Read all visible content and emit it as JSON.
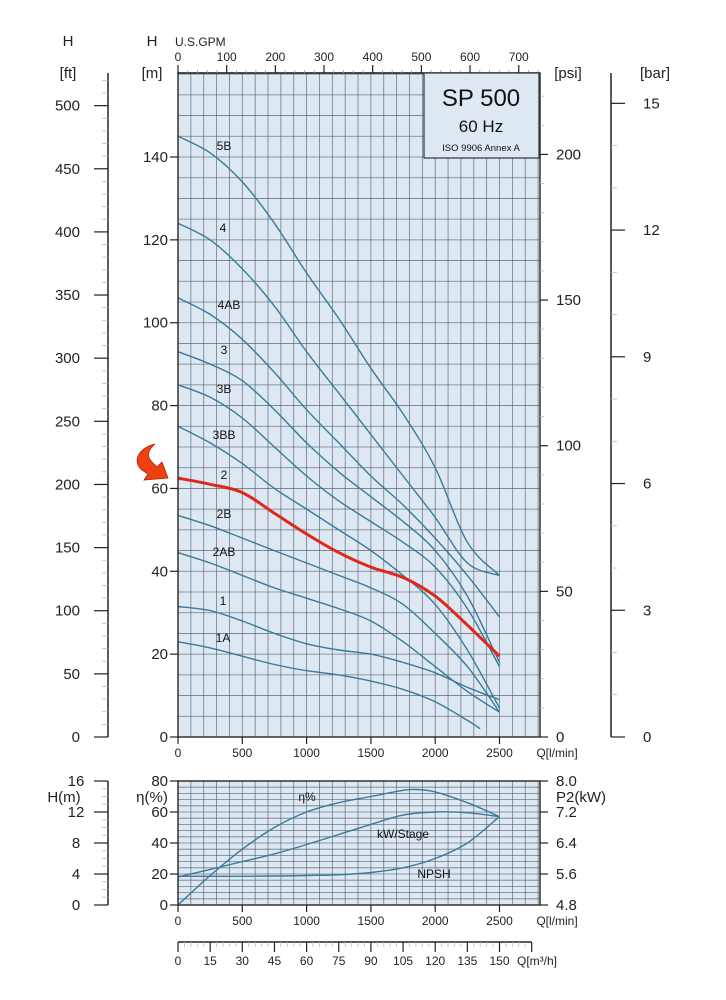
{
  "colors": {
    "plot_bg": "#dde8f3",
    "grid": "#4a5866",
    "curve": "#3a7a9a",
    "highlight": "#e02818",
    "arrow": "#f04010",
    "axis": "#222222"
  },
  "title_box": {
    "model": "SP 500",
    "frequency": "60 Hz",
    "standard": "ISO 9906 Annex A"
  },
  "arrow_marker": {
    "icon": "curved-arrow-icon",
    "points_to_curve": "2"
  },
  "chart_data": [
    {
      "type": "line",
      "title": "SP 500 60 Hz head curves",
      "xlabel": "Q[l/min]",
      "ylabel": "H [m]",
      "xlim": [
        0,
        2800
      ],
      "ylim": [
        0,
        160
      ],
      "grid": true,
      "x_ticks": [
        0,
        500,
        1000,
        1500,
        2000,
        2500
      ],
      "x_tick_labels": [
        "0",
        "500",
        "1000",
        "1500",
        "2000",
        "2500"
      ],
      "y_ticks": [
        0,
        20,
        40,
        60,
        80,
        100,
        120,
        140
      ],
      "y_tick_labels": [
        "0",
        "20",
        "40",
        "60",
        "80",
        "100",
        "120",
        "140"
      ],
      "top_axis": {
        "label": "U.S.GPM",
        "ticks": [
          "0",
          "100",
          "200",
          "300",
          "400",
          "500",
          "600",
          "700"
        ]
      },
      "left_axis_ft": {
        "label": "H",
        "unit": "[ft]",
        "ticks": [
          "0",
          "50",
          "100",
          "150",
          "200",
          "250",
          "300",
          "350",
          "400",
          "450",
          "500"
        ]
      },
      "left_axis_m": {
        "label": "H",
        "unit": "[m]"
      },
      "right_axis_psi": {
        "unit": "[psi]",
        "ticks": [
          "0",
          "50",
          "100",
          "150",
          "200"
        ]
      },
      "right_axis_bar": {
        "unit": "[bar]",
        "ticks": [
          "0",
          "3",
          "6",
          "9",
          "12",
          "15"
        ]
      },
      "series": [
        {
          "name": "5B",
          "highlight": false,
          "x": [
            0,
            250,
            500,
            750,
            1000,
            1250,
            1500,
            1750,
            2000,
            2250,
            2500
          ],
          "y": [
            145,
            141,
            134,
            124,
            112,
            101,
            89,
            78,
            65,
            47,
            39
          ]
        },
        {
          "name": "4",
          "highlight": false,
          "x": [
            0,
            250,
            500,
            750,
            1000,
            1250,
            1500,
            1750,
            2000,
            2250,
            2500
          ],
          "y": [
            124,
            120,
            113,
            104,
            93,
            83,
            73,
            63,
            53,
            42,
            39
          ]
        },
        {
          "name": "4AB",
          "highlight": false,
          "x": [
            0,
            250,
            500,
            750,
            1000,
            1250,
            1500,
            1750,
            2000,
            2250,
            2500
          ],
          "y": [
            106,
            102,
            96,
            88,
            79,
            71,
            63,
            56,
            48,
            39,
            29
          ]
        },
        {
          "name": "3",
          "highlight": false,
          "x": [
            0,
            250,
            500,
            750,
            1000,
            1250,
            1500,
            1750,
            2000,
            2250,
            2500
          ],
          "y": [
            93,
            90,
            86,
            79,
            71,
            64,
            58,
            52,
            45,
            34,
            18
          ]
        },
        {
          "name": "3B",
          "highlight": false,
          "x": [
            0,
            250,
            500,
            750,
            1000,
            1250,
            1500,
            1750,
            2000,
            2250,
            2500
          ],
          "y": [
            85,
            82,
            77,
            70,
            63,
            57,
            52,
            47,
            41,
            31,
            17
          ]
        },
        {
          "name": "3BB",
          "highlight": false,
          "x": [
            0,
            250,
            500,
            750,
            1000,
            1250,
            1500,
            1750,
            2000,
            2250,
            2500
          ],
          "y": [
            75,
            71,
            66,
            60,
            55,
            50,
            45,
            39,
            32,
            21,
            7
          ]
        },
        {
          "name": "2",
          "highlight": true,
          "x": [
            0,
            250,
            500,
            750,
            1000,
            1250,
            1500,
            1750,
            2000,
            2250,
            2500
          ],
          "y": [
            62.5,
            61,
            59,
            54,
            49,
            44.5,
            41,
            38.5,
            34,
            27,
            19.5
          ]
        },
        {
          "name": "2B",
          "highlight": false,
          "x": [
            0,
            250,
            500,
            750,
            1000,
            1250,
            1500,
            1750,
            2000,
            2250,
            2500
          ],
          "y": [
            53.5,
            51,
            48,
            45,
            42,
            39,
            36,
            32,
            25,
            17,
            6
          ]
        },
        {
          "name": "2AB",
          "highlight": false,
          "x": [
            0,
            250,
            500,
            750,
            1000,
            1250,
            1500,
            1750,
            2000,
            2250,
            2500
          ],
          "y": [
            44.5,
            42,
            39,
            36,
            33.5,
            31,
            28,
            23,
            17,
            11,
            6
          ]
        },
        {
          "name": "1",
          "highlight": false,
          "x": [
            0,
            250,
            500,
            750,
            1000,
            1250,
            1500,
            1750,
            2000,
            2250,
            2500
          ],
          "y": [
            31.5,
            30.5,
            28,
            25,
            22.5,
            21,
            20,
            18,
            15.5,
            12,
            9
          ]
        },
        {
          "name": "1A",
          "highlight": false,
          "x": [
            0,
            250,
            500,
            750,
            1000,
            1250,
            1500,
            1750,
            2000,
            2250,
            2350
          ],
          "y": [
            23,
            21.5,
            19.5,
            17.5,
            16,
            15,
            13.5,
            11.5,
            8.5,
            4,
            2
          ]
        }
      ]
    },
    {
      "type": "line",
      "title": "Efficiency, power and NPSH",
      "xlabel": "Q[l/min]",
      "xlim": [
        0,
        2800
      ],
      "grid": true,
      "x_ticks": [
        0,
        500,
        1000,
        1500,
        2000,
        2500
      ],
      "x_tick_labels": [
        "0",
        "500",
        "1000",
        "1500",
        "2000",
        "2500"
      ],
      "left_axis_eta": {
        "label": "η(%)",
        "ylim": [
          0,
          80
        ],
        "ticks": [
          "0",
          "20",
          "40",
          "60",
          "80"
        ]
      },
      "left_axis_h": {
        "label": "H(m)",
        "ylim": [
          0,
          16
        ],
        "ticks": [
          "0",
          "4",
          "8",
          "12",
          "16"
        ]
      },
      "right_axis_p2": {
        "label": "P2(kW)",
        "ylim": [
          4.8,
          8.0
        ],
        "ticks": [
          "4.8",
          "5.6",
          "6.4",
          "7.2",
          "8.0"
        ]
      },
      "bottom_axis_m3h": {
        "label": "Q[m³/h]",
        "ticks": [
          "0",
          "15",
          "30",
          "45",
          "60",
          "75",
          "90",
          "105",
          "120",
          "135",
          "150"
        ]
      },
      "series": [
        {
          "name": "η%",
          "axis": "eta",
          "x": [
            0,
            250,
            500,
            750,
            1000,
            1250,
            1500,
            1750,
            1850,
            2000,
            2250,
            2500
          ],
          "y": [
            0,
            19,
            36,
            50,
            60,
            66,
            70,
            74,
            74.5,
            73,
            66,
            57
          ]
        },
        {
          "name": "kW/Stage",
          "axis": "eta",
          "x": [
            0,
            250,
            500,
            750,
            1000,
            1250,
            1500,
            1750,
            2000,
            2250,
            2500
          ],
          "y": [
            18,
            23,
            28,
            33,
            39,
            45.5,
            52,
            58,
            60,
            59.5,
            57
          ]
        },
        {
          "name": "NPSH",
          "axis": "eta",
          "x": [
            0,
            250,
            500,
            750,
            1000,
            1250,
            1500,
            1750,
            2000,
            2250,
            2500
          ],
          "y": [
            18.5,
            18.5,
            18.5,
            18.7,
            19,
            19.5,
            21,
            24,
            30,
            40,
            57
          ]
        }
      ]
    }
  ]
}
